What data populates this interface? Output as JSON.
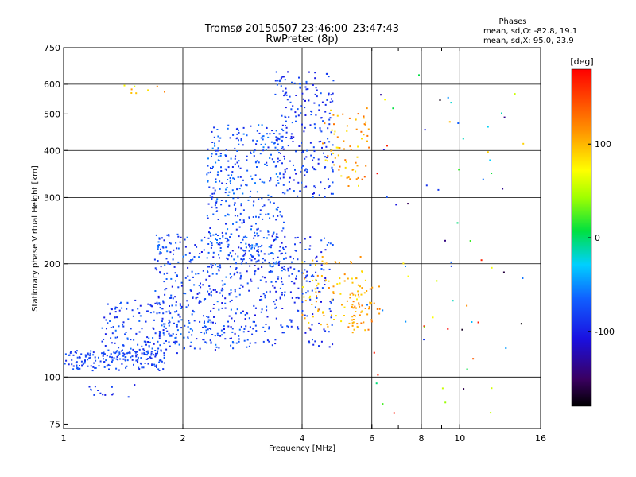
{
  "chart_data": {
    "type": "scatter",
    "title": "Tromsø 20150507 23:46:00–23:47:43",
    "subtitle": "RwPretec (8p)",
    "xlabel": "Frequency [MHz]",
    "ylabel": "Stationary phase Virtual Height [km]",
    "x_scale": "log",
    "y_scale": "log",
    "xlim": [
      1,
      16
    ],
    "ylim": [
      73,
      750
    ],
    "x_ticks": [
      {
        "value": 1,
        "label": "1"
      },
      {
        "value": 2,
        "label": "2"
      },
      {
        "value": 4,
        "label": "4"
      },
      {
        "value": 6,
        "label": "6"
      },
      {
        "value": 8,
        "label": "8"
      },
      {
        "value": 10,
        "label": "10"
      },
      {
        "value": 16,
        "label": "16"
      }
    ],
    "x_minor_ticks": [
      6,
      7,
      8,
      9,
      10
    ],
    "y_ticks": [
      {
        "value": 75,
        "label": "75"
      },
      {
        "value": 100,
        "label": "100"
      },
      {
        "value": 200,
        "label": "200"
      },
      {
        "value": 300,
        "label": "300"
      },
      {
        "value": 400,
        "label": "400"
      },
      {
        "value": 500,
        "label": "500"
      },
      {
        "value": 600,
        "label": "600"
      },
      {
        "value": 750,
        "label": "750"
      }
    ],
    "grid": true,
    "grid_x": [
      2,
      4,
      6,
      8,
      10
    ],
    "grid_y": [
      100,
      200,
      300,
      400,
      500,
      600
    ],
    "stats": {
      "heading": "Phases",
      "line_o": "mean, sd,O: -82.8, 19.1",
      "line_x": "mean, sd,X:  95.0, 23.9"
    },
    "colorbar": {
      "label": "[deg]",
      "range": [
        -180,
        180
      ],
      "ticks": [
        {
          "value": 100,
          "label": "100"
        },
        {
          "value": 0,
          "label": "0"
        },
        {
          "value": -100,
          "label": "-100"
        }
      ]
    },
    "clusters": [
      {
        "x": [
          1.0,
          1.8
        ],
        "y": [
          104,
          118
        ],
        "phase": [
          -100,
          -70
        ],
        "n": 180
      },
      {
        "x": [
          1.25,
          2.0
        ],
        "y": [
          115,
          160
        ],
        "phase": [
          -105,
          -65
        ],
        "n": 160
      },
      {
        "x": [
          1.7,
          2.8
        ],
        "y": [
          118,
          240
        ],
        "phase": [
          -110,
          -60
        ],
        "n": 340
      },
      {
        "x": [
          2.3,
          3.6
        ],
        "y": [
          190,
          470
        ],
        "phase": [
          -100,
          -55
        ],
        "n": 380
      },
      {
        "x": [
          2.8,
          4.8
        ],
        "y": [
          120,
          240
        ],
        "phase": [
          -110,
          -70
        ],
        "n": 280
      },
      {
        "x": [
          3.4,
          4.8
        ],
        "y": [
          300,
          650
        ],
        "phase": [
          -110,
          -70
        ],
        "n": 220
      },
      {
        "x": [
          4.0,
          5.8
        ],
        "y": [
          135,
          210
        ],
        "phase": [
          80,
          120
        ],
        "n": 90
      },
      {
        "x": [
          5.2,
          6.3
        ],
        "y": [
          130,
          175
        ],
        "phase": [
          95,
          130
        ],
        "n": 50
      },
      {
        "x": [
          4.5,
          5.9
        ],
        "y": [
          320,
          520
        ],
        "phase": [
          80,
          135
        ],
        "n": 70
      },
      {
        "x": [
          1.15,
          1.55
        ],
        "y": [
          88,
          96
        ],
        "phase": [
          -105,
          -80
        ],
        "n": 14
      },
      {
        "x": [
          1.4,
          1.9
        ],
        "y": [
          550,
          600
        ],
        "phase": [
          60,
          130
        ],
        "n": 8
      },
      {
        "x": [
          5.8,
          14.5
        ],
        "y": [
          80,
          650
        ],
        "phase": [
          -180,
          180
        ],
        "n": 70
      }
    ]
  }
}
